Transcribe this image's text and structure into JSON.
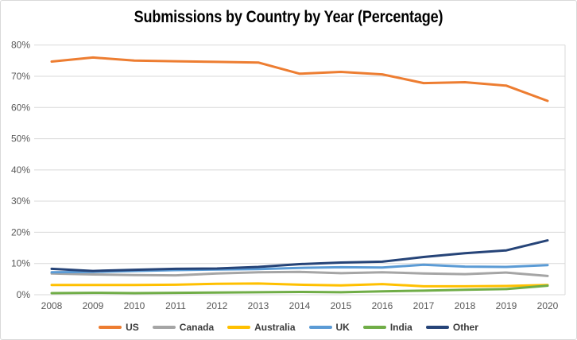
{
  "chart_data": {
    "type": "line",
    "title": "Submissions by Country by Year (Percentage)",
    "x": [
      "2008",
      "2009",
      "2010",
      "2011",
      "2012",
      "2013",
      "2014",
      "2015",
      "2016",
      "2017",
      "2018",
      "2019",
      "2020"
    ],
    "series": [
      {
        "name": "US",
        "color": "#ED7D31",
        "values": [
          74.7,
          76.0,
          75.0,
          74.8,
          74.6,
          74.4,
          70.8,
          71.4,
          70.6,
          67.8,
          68.1,
          67.0,
          62.1
        ]
      },
      {
        "name": "Canada",
        "color": "#A5A5A5",
        "values": [
          6.8,
          6.5,
          6.3,
          6.2,
          6.8,
          7.2,
          7.3,
          6.9,
          7.2,
          6.8,
          6.6,
          7.1,
          6.0
        ]
      },
      {
        "name": "Australia",
        "color": "#FFC000",
        "values": [
          3.1,
          3.1,
          3.1,
          3.2,
          3.5,
          3.6,
          3.2,
          3.0,
          3.4,
          2.7,
          2.7,
          2.8,
          3.1
        ]
      },
      {
        "name": "UK",
        "color": "#5B9BD5",
        "values": [
          7.2,
          7.3,
          7.6,
          7.9,
          8.1,
          8.2,
          8.6,
          8.8,
          8.7,
          9.6,
          9.0,
          8.9,
          9.5
        ]
      },
      {
        "name": "India",
        "color": "#70AD47",
        "values": [
          0.5,
          0.6,
          0.5,
          0.6,
          0.7,
          0.8,
          0.9,
          0.8,
          1.1,
          1.3,
          1.6,
          1.8,
          2.9
        ]
      },
      {
        "name": "Other",
        "color": "#264478",
        "values": [
          8.3,
          7.6,
          8.0,
          8.3,
          8.4,
          8.9,
          9.8,
          10.3,
          10.6,
          12.1,
          13.3,
          14.2,
          17.4
        ]
      }
    ],
    "ylim": [
      0,
      80
    ],
    "y_tick_step": 10,
    "y_tick_labels": [
      "0%",
      "10%",
      "20%",
      "30%",
      "40%",
      "50%",
      "60%",
      "70%",
      "80%"
    ],
    "grid": true,
    "legend_position": "bottom",
    "gridline_color": "#D9D9D9",
    "axis_text_color": "#595959",
    "background_color": "#FFFFFF",
    "border_color": "#D9D9D9"
  }
}
